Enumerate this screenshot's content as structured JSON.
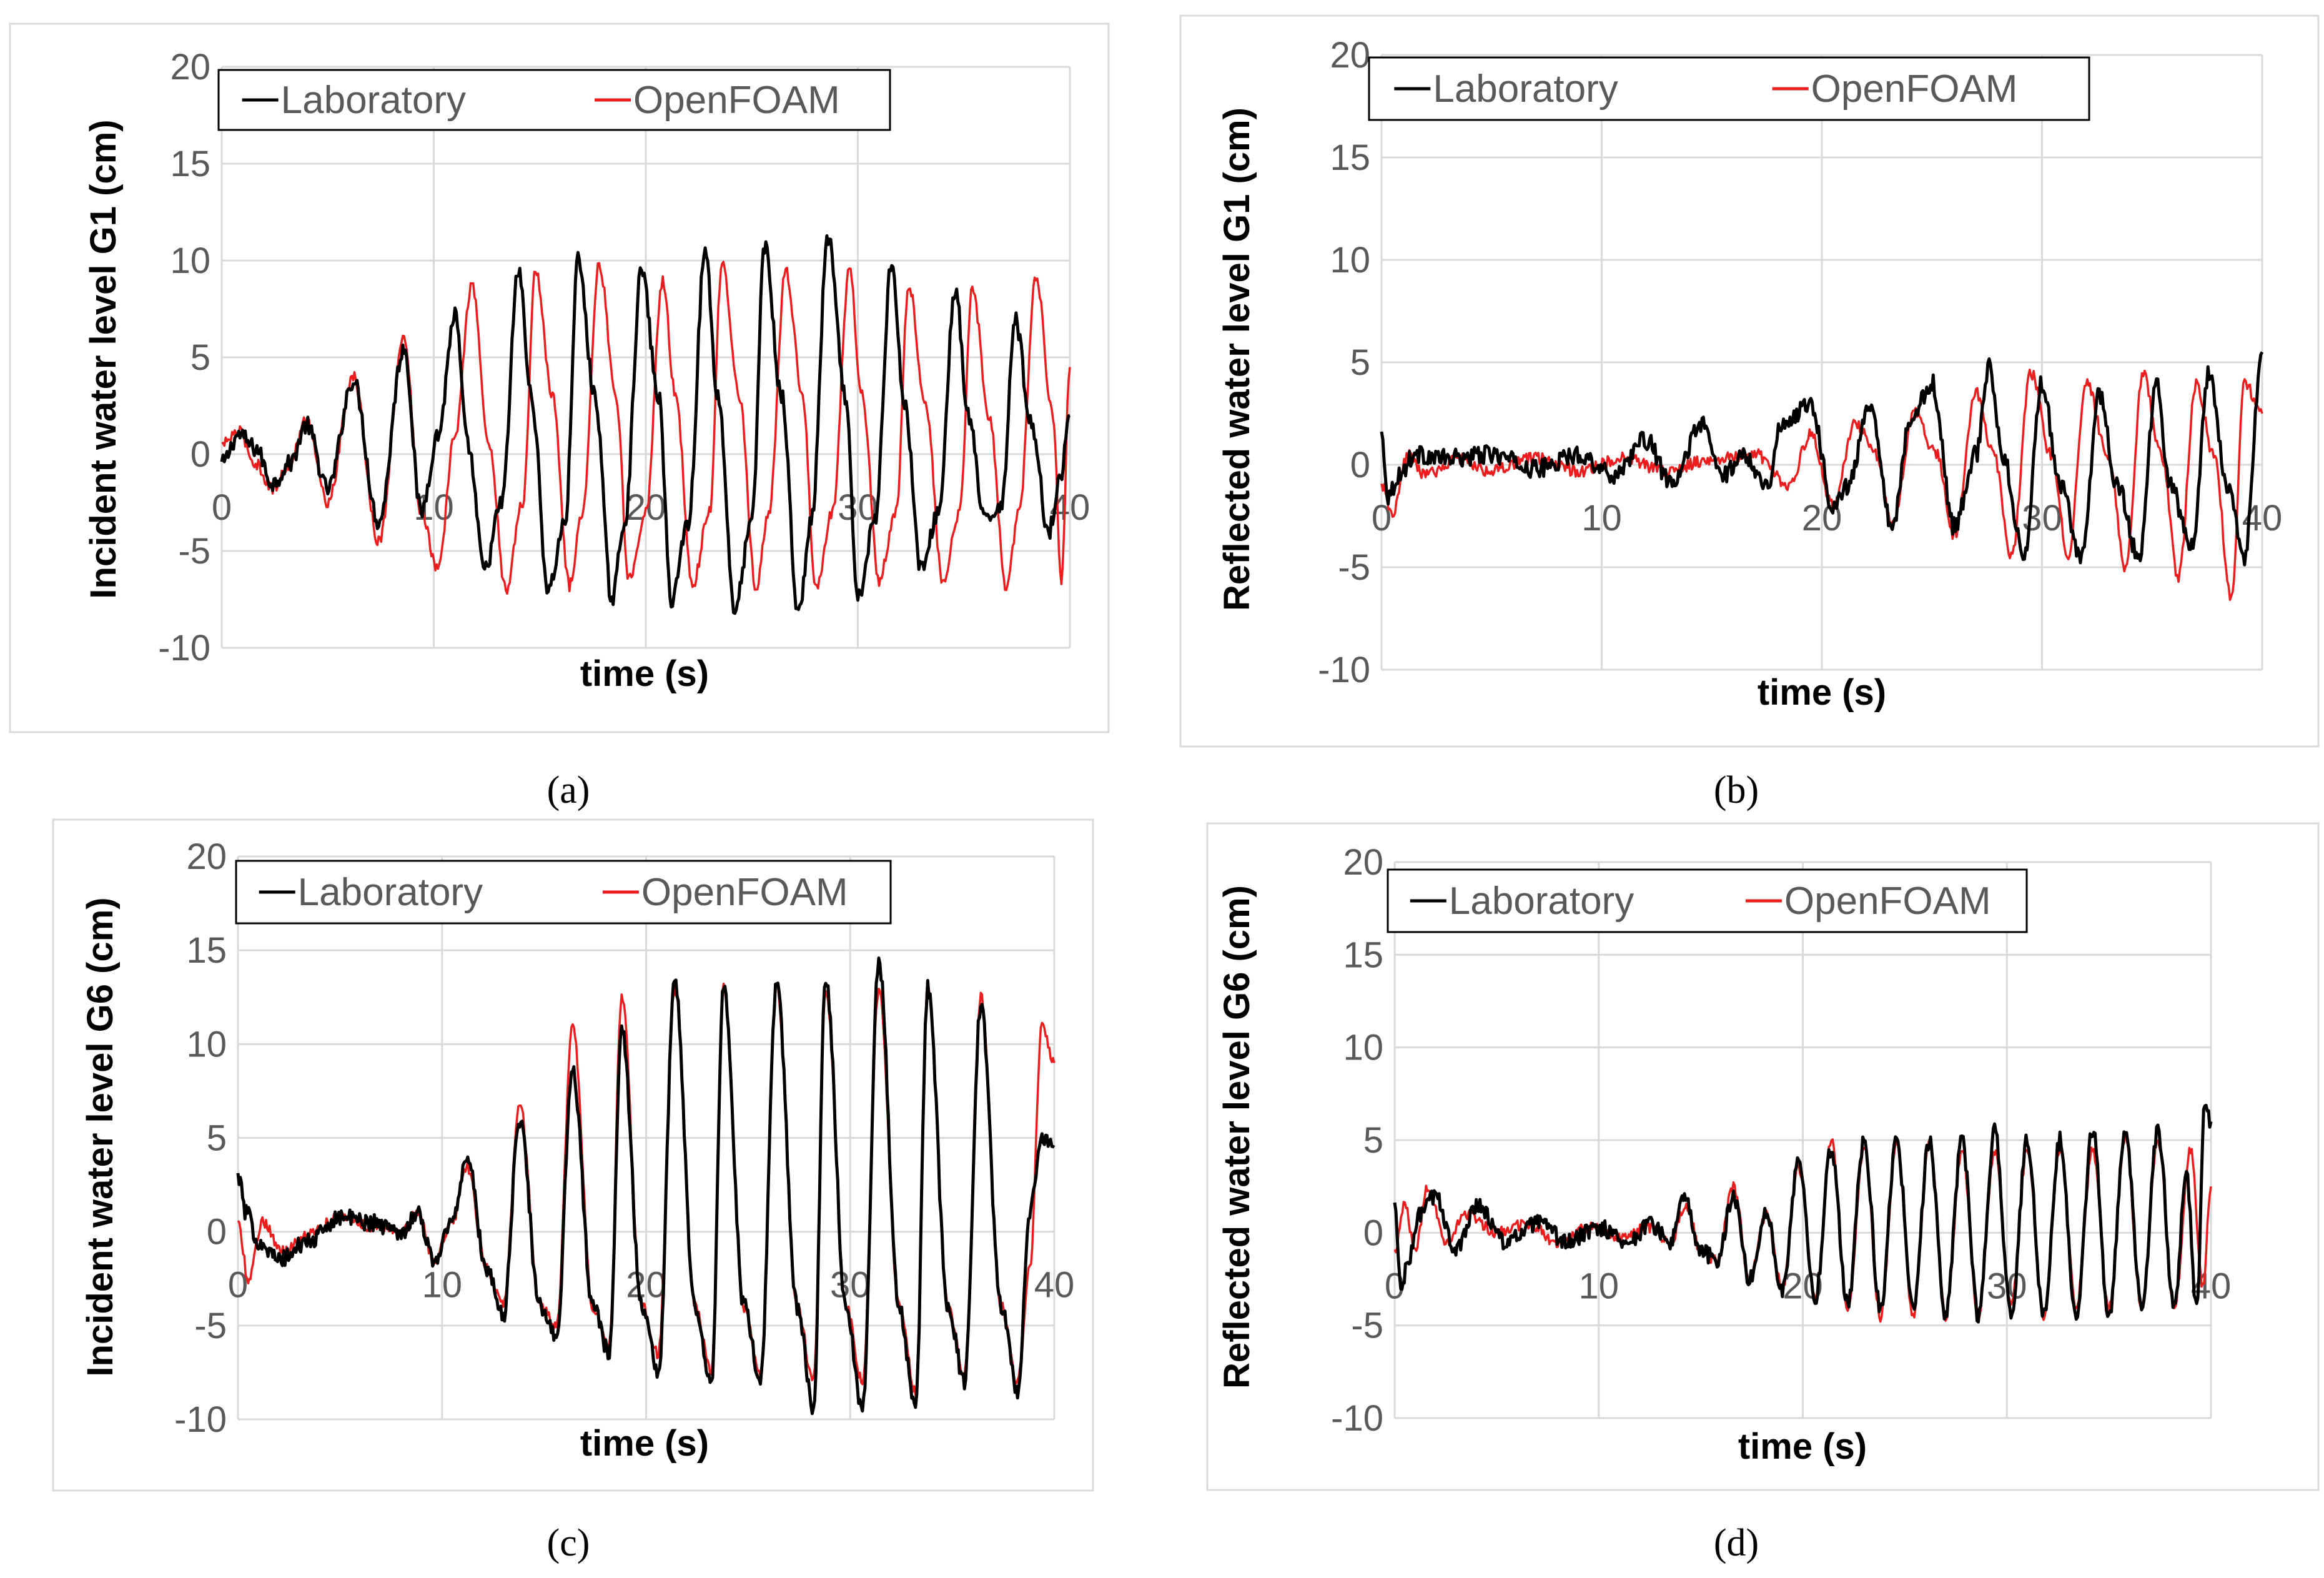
{
  "figure": {
    "panel_labels": [
      "(a)",
      "(b)",
      "(c)",
      "(d)"
    ]
  },
  "colors": {
    "laboratory": "#000000",
    "openfoam": "#ee1c1c",
    "grid": "#d9d9d9",
    "frame": "#d9d9d9",
    "tick_text": "#595959",
    "axis_title": "#000000"
  },
  "chart_data": [
    {
      "type": "line",
      "panel": "(a)",
      "title": "",
      "xlabel": "time (s)",
      "ylabel": "Incident water level G1 (cm)",
      "xlim": [
        0,
        40
      ],
      "ylim": [
        -10,
        20
      ],
      "xticks": [
        0,
        10,
        20,
        30,
        40
      ],
      "xtick_labels": [
        "0",
        "10",
        "20",
        "30",
        "40"
      ],
      "yticks": [
        -10,
        -5,
        0,
        5,
        10,
        15,
        20
      ],
      "ytick_labels": [
        "-10",
        "-5",
        "0",
        "5",
        "10",
        "15",
        "20"
      ],
      "grid": true,
      "legend": [
        "Laboratory",
        "OpenFOAM"
      ],
      "legend_position": "top",
      "series": [
        {
          "name": "Laboratory",
          "color": "#000000",
          "t": [
            0,
            0.8,
            1.6,
            2.4,
            3.2,
            4.0,
            5.0,
            6.2,
            7.4,
            8.6,
            9.4,
            10.2,
            11.0,
            11.6,
            12.4,
            13.2,
            14.0,
            14.6,
            15.4,
            16.2,
            16.8,
            17.6,
            18.4,
            19.0,
            19.8,
            20.6,
            21.2,
            22.0,
            22.8,
            23.4,
            24.2,
            25.0,
            25.6,
            26.4,
            27.2,
            27.8,
            28.6,
            29.4,
            30.0,
            30.8,
            31.6,
            32.2,
            33.0,
            33.8,
            34.6,
            35.2,
            36.0,
            36.8,
            37.4,
            38.2,
            39.0,
            39.5,
            40.0
          ],
          "values": [
            -0.5,
            1.0,
            0.3,
            -1.5,
            -0.5,
            1.5,
            -1.8,
            3.8,
            -3.5,
            5.5,
            -3.0,
            1.0,
            7.2,
            0.5,
            -6.0,
            -2.5,
            9.5,
            3.0,
            -7.0,
            -3.5,
            10.0,
            3.0,
            -7.5,
            -3.5,
            9.5,
            3.0,
            -7.5,
            -3.5,
            10.5,
            3.0,
            -8.0,
            -3.5,
            10.8,
            3.0,
            -8.3,
            -3.5,
            11.2,
            3.0,
            -7.5,
            -3.5,
            10.0,
            2.5,
            -6.0,
            -3.0,
            8.5,
            2.0,
            -3.5,
            -2.5,
            7.0,
            1.5,
            -4.0,
            -1.5,
            2.0
          ]
        },
        {
          "name": "OpenFOAM",
          "color": "#ee1c1c",
          "t": [
            0,
            0.8,
            1.6,
            2.4,
            3.2,
            4.0,
            5.0,
            6.2,
            7.4,
            8.6,
            9.4,
            10.2,
            11.0,
            11.8,
            12.6,
            13.4,
            14.2,
            14.8,
            15.6,
            16.4,
            17.0,
            17.8,
            18.6,
            19.2,
            20.0,
            20.8,
            21.4,
            22.2,
            23.0,
            23.6,
            24.4,
            25.2,
            25.8,
            26.6,
            27.4,
            28.0,
            28.8,
            29.6,
            30.2,
            31.0,
            31.8,
            32.4,
            33.2,
            34.0,
            34.8,
            35.4,
            36.2,
            37.0,
            37.6,
            38.4,
            39.2,
            39.6,
            40.0
          ],
          "values": [
            0.5,
            1.2,
            -0.5,
            -1.8,
            -0.5,
            1.8,
            -2.5,
            4.0,
            -4.5,
            6.0,
            -3.0,
            -6.0,
            1.0,
            8.8,
            0.5,
            -7.0,
            -2.5,
            9.5,
            3.0,
            -6.8,
            -3.0,
            9.8,
            3.0,
            -6.5,
            -3.0,
            9.0,
            3.0,
            -6.8,
            -3.0,
            10.0,
            3.0,
            -7.0,
            -3.0,
            9.5,
            3.0,
            -7.0,
            -3.0,
            9.5,
            3.0,
            -6.5,
            -3.0,
            8.8,
            2.5,
            -6.5,
            -3.0,
            8.5,
            2.0,
            -7.0,
            -3.0,
            9.2,
            2.0,
            -6.5,
            4.5
          ]
        }
      ]
    },
    {
      "type": "line",
      "panel": "(b)",
      "title": "",
      "xlabel": "time (s)",
      "ylabel": "Reflected water level G1 (cm)",
      "xlim": [
        0,
        40
      ],
      "ylim": [
        -10,
        20
      ],
      "xticks": [
        0,
        10,
        20,
        30,
        40
      ],
      "xtick_labels": [
        "0",
        "10",
        "20",
        "30",
        "40"
      ],
      "yticks": [
        -10,
        -5,
        0,
        5,
        10,
        15,
        20
      ],
      "ytick_labels": [
        "-10",
        "-5",
        "0",
        "5",
        "10",
        "15",
        "20"
      ],
      "grid": true,
      "legend": [
        "Laboratory",
        "OpenFOAM"
      ],
      "legend_position": "top",
      "series": [
        {
          "name": "Laboratory",
          "color": "#000000",
          "t": [
            0,
            0.3,
            0.8,
            1.5,
            3.0,
            5.0,
            7.0,
            9.0,
            10.5,
            12.0,
            13.2,
            14.5,
            15.5,
            16.5,
            17.5,
            18.2,
            19.5,
            20.5,
            21.2,
            22.2,
            23.2,
            24.0,
            25.0,
            26.0,
            27.0,
            27.6,
            28.2,
            29.2,
            30.0,
            30.8,
            31.8,
            32.6,
            33.4,
            34.4,
            35.2,
            35.8,
            36.8,
            37.6,
            38.4,
            39.2,
            40.0
          ],
          "values": [
            1.5,
            -1.5,
            -0.5,
            0.5,
            0.3,
            0.5,
            -0.2,
            0.5,
            -0.5,
            1.2,
            -1.0,
            2.0,
            -0.5,
            0.5,
            -1.0,
            2.0,
            3.0,
            -2.0,
            -1.0,
            3.0,
            -3.0,
            2.0,
            4.0,
            -3.0,
            0.5,
            4.8,
            0.5,
            -4.5,
            4.0,
            -1.0,
            -4.5,
            3.5,
            -1.0,
            -4.5,
            4.0,
            -1.0,
            -4.0,
            4.5,
            -1.0,
            -4.5,
            5.5
          ]
        },
        {
          "name": "OpenFOAM",
          "color": "#ee1c1c",
          "t": [
            0,
            0.5,
            1.2,
            2.0,
            3.5,
            5.0,
            7.0,
            9.0,
            11.0,
            13.0,
            15.0,
            17.0,
            18.5,
            19.5,
            20.5,
            21.5,
            22.5,
            23.2,
            24.2,
            25.2,
            26.0,
            27.0,
            27.8,
            28.6,
            29.5,
            30.4,
            31.2,
            32.0,
            33.0,
            33.8,
            34.6,
            35.4,
            36.2,
            37.0,
            37.8,
            38.6,
            39.2,
            40.0
          ],
          "values": [
            -1.0,
            -2.5,
            0.5,
            -0.5,
            0.3,
            -0.3,
            0.3,
            -0.3,
            0.3,
            -0.3,
            0.3,
            0.5,
            -1.0,
            1.5,
            -2.0,
            2.0,
            0.5,
            -3.0,
            2.5,
            0.5,
            -3.5,
            3.5,
            0.5,
            -4.5,
            4.5,
            0.5,
            -4.5,
            4.0,
            0.5,
            -5.0,
            4.5,
            0.5,
            -5.5,
            4.0,
            0.5,
            -6.5,
            4.0,
            2.5
          ]
        }
      ]
    },
    {
      "type": "line",
      "panel": "(c)",
      "title": "",
      "xlabel": "time (s)",
      "ylabel": "Incident water level G6 (cm)",
      "xlim": [
        0,
        40
      ],
      "ylim": [
        -10,
        20
      ],
      "xticks": [
        0,
        10,
        20,
        30,
        40
      ],
      "xtick_labels": [
        "0",
        "10",
        "20",
        "30",
        "40"
      ],
      "yticks": [
        -10,
        -5,
        0,
        5,
        10,
        15,
        20
      ],
      "ytick_labels": [
        "-10",
        "-5",
        "0",
        "5",
        "10",
        "15",
        "20"
      ],
      "grid": true,
      "legend": [
        "Laboratory",
        "OpenFOAM"
      ],
      "legend_position": "top",
      "series": [
        {
          "name": "Laboratory",
          "color": "#000000",
          "t": [
            0,
            0.4,
            1.0,
            2.0,
            3.5,
            5.0,
            6.5,
            8.0,
            8.8,
            9.6,
            10.5,
            11.2,
            12.2,
            13.0,
            13.8,
            14.8,
            15.6,
            16.4,
            17.4,
            18.2,
            18.8,
            19.8,
            20.6,
            21.4,
            22.4,
            23.2,
            23.8,
            24.8,
            25.6,
            26.4,
            27.4,
            28.2,
            28.8,
            29.8,
            30.6,
            31.4,
            32.4,
            33.2,
            33.8,
            34.8,
            35.6,
            36.4,
            37.4,
            38.2,
            38.8,
            39.4,
            40.0
          ],
          "values": [
            3.0,
            1.0,
            -0.5,
            -1.5,
            -0.5,
            0.8,
            0.5,
            0.0,
            1.0,
            -1.5,
            0.5,
            4.0,
            -2.0,
            -4.5,
            6.0,
            -4.0,
            -5.5,
            8.5,
            -4.0,
            -6.5,
            11.0,
            -4.0,
            -7.5,
            13.3,
            -4.0,
            -8.0,
            13.0,
            -4.0,
            -8.0,
            13.3,
            -4.0,
            -9.5,
            13.5,
            -4.0,
            -9.5,
            14.3,
            -4.0,
            -9.5,
            13.0,
            -4.0,
            -8.0,
            12.0,
            -4.0,
            -8.5,
            1.0,
            5.0,
            4.5
          ]
        },
        {
          "name": "OpenFOAM",
          "color": "#ee1c1c",
          "t": [
            0,
            0.5,
            1.2,
            2.2,
            3.5,
            5.0,
            6.5,
            8.0,
            8.8,
            9.6,
            10.5,
            11.2,
            12.2,
            13.0,
            13.8,
            14.8,
            15.6,
            16.4,
            17.4,
            18.2,
            18.8,
            19.8,
            20.6,
            21.4,
            22.4,
            23.2,
            23.8,
            24.8,
            25.6,
            26.4,
            27.4,
            28.2,
            28.8,
            29.8,
            30.6,
            31.4,
            32.4,
            33.2,
            33.8,
            34.8,
            35.6,
            36.4,
            37.4,
            38.2,
            38.8,
            39.4,
            40.0
          ],
          "values": [
            0.5,
            -2.5,
            0.5,
            -1.0,
            0.0,
            0.8,
            0.3,
            0.0,
            1.0,
            -1.5,
            0.5,
            3.5,
            -2.0,
            -4.0,
            6.8,
            -4.0,
            -5.0,
            11.0,
            -4.0,
            -6.0,
            12.5,
            -4.0,
            -6.5,
            13.0,
            -4.0,
            -7.5,
            13.0,
            -4.0,
            -7.5,
            13.0,
            -4.0,
            -8.0,
            13.0,
            -4.0,
            -8.0,
            13.0,
            -4.0,
            -8.5,
            13.0,
            -4.0,
            -7.5,
            12.5,
            -4.0,
            -8.0,
            -2.0,
            11.0,
            9.0
          ]
        }
      ]
    },
    {
      "type": "line",
      "panel": "(d)",
      "title": "",
      "xlabel": "time (s)",
      "ylabel": "Reflected water level G6 (cm)",
      "xlim": [
        0,
        40
      ],
      "ylim": [
        -10,
        20
      ],
      "xticks": [
        0,
        10,
        20,
        30,
        40
      ],
      "xtick_labels": [
        "0",
        "10",
        "20",
        "30",
        "40"
      ],
      "yticks": [
        -10,
        -5,
        0,
        5,
        10,
        15,
        20
      ],
      "ytick_labels": [
        "-10",
        "-5",
        "0",
        "5",
        "10",
        "15",
        "20"
      ],
      "grid": true,
      "legend": [
        "Laboratory",
        "OpenFOAM"
      ],
      "legend_position": "top",
      "series": [
        {
          "name": "Laboratory",
          "color": "#000000",
          "t": [
            0,
            0.3,
            0.7,
            1.2,
            2.0,
            3.0,
            4.0,
            5.5,
            7.0,
            8.5,
            10.0,
            11.5,
            12.5,
            13.5,
            14.2,
            15.0,
            15.8,
            16.6,
            17.4,
            18.2,
            19.0,
            19.8,
            20.6,
            21.4,
            22.2,
            23.0,
            23.8,
            24.6,
            25.4,
            26.2,
            27.0,
            27.8,
            28.6,
            29.4,
            30.2,
            31.0,
            31.8,
            32.6,
            33.4,
            34.2,
            35.0,
            35.8,
            36.6,
            37.4,
            38.2,
            38.8,
            39.3,
            39.7,
            40.0
          ],
          "values": [
            1.5,
            -3.0,
            -1.5,
            1.0,
            2.0,
            -1.0,
            1.5,
            -0.5,
            0.5,
            -0.5,
            0.3,
            -0.5,
            0.5,
            -0.5,
            1.8,
            -1.0,
            -1.5,
            2.0,
            -2.5,
            1.0,
            -3.0,
            4.0,
            -3.5,
            4.5,
            -3.8,
            5.0,
            -4.0,
            5.0,
            -4.3,
            5.0,
            -4.5,
            5.0,
            -4.5,
            5.5,
            -4.5,
            5.0,
            -4.5,
            5.0,
            -4.5,
            5.5,
            -4.5,
            5.5,
            -4.0,
            5.5,
            -4.0,
            3.0,
            -4.0,
            7.0,
            6.0
          ]
        },
        {
          "name": "OpenFOAM",
          "color": "#ee1c1c",
          "t": [
            0,
            0.5,
            1.0,
            1.6,
            2.5,
            3.5,
            5.0,
            6.5,
            8.0,
            9.5,
            11.0,
            12.5,
            13.5,
            14.3,
            15.0,
            15.8,
            16.6,
            17.4,
            18.2,
            19.0,
            19.8,
            20.6,
            21.4,
            22.2,
            23.0,
            23.8,
            24.6,
            25.4,
            26.2,
            27.0,
            27.8,
            28.6,
            29.4,
            30.2,
            31.0,
            31.8,
            32.6,
            33.4,
            34.2,
            35.0,
            35.8,
            36.6,
            37.4,
            38.2,
            39.0,
            39.6,
            40.0
          ],
          "values": [
            -1.0,
            1.5,
            -1.0,
            2.5,
            -0.5,
            1.0,
            0.0,
            0.5,
            -0.5,
            0.3,
            -0.3,
            0.3,
            -0.5,
            1.5,
            -1.0,
            -1.5,
            2.5,
            -2.5,
            1.0,
            -3.0,
            3.5,
            -3.5,
            5.0,
            -4.0,
            4.5,
            -4.5,
            5.0,
            -4.5,
            5.0,
            -4.5,
            4.5,
            -4.5,
            4.5,
            -4.0,
            4.5,
            -4.5,
            4.5,
            -4.0,
            4.5,
            -4.0,
            5.0,
            -4.0,
            5.0,
            -4.0,
            4.5,
            -3.0,
            2.5
          ]
        }
      ]
    }
  ]
}
